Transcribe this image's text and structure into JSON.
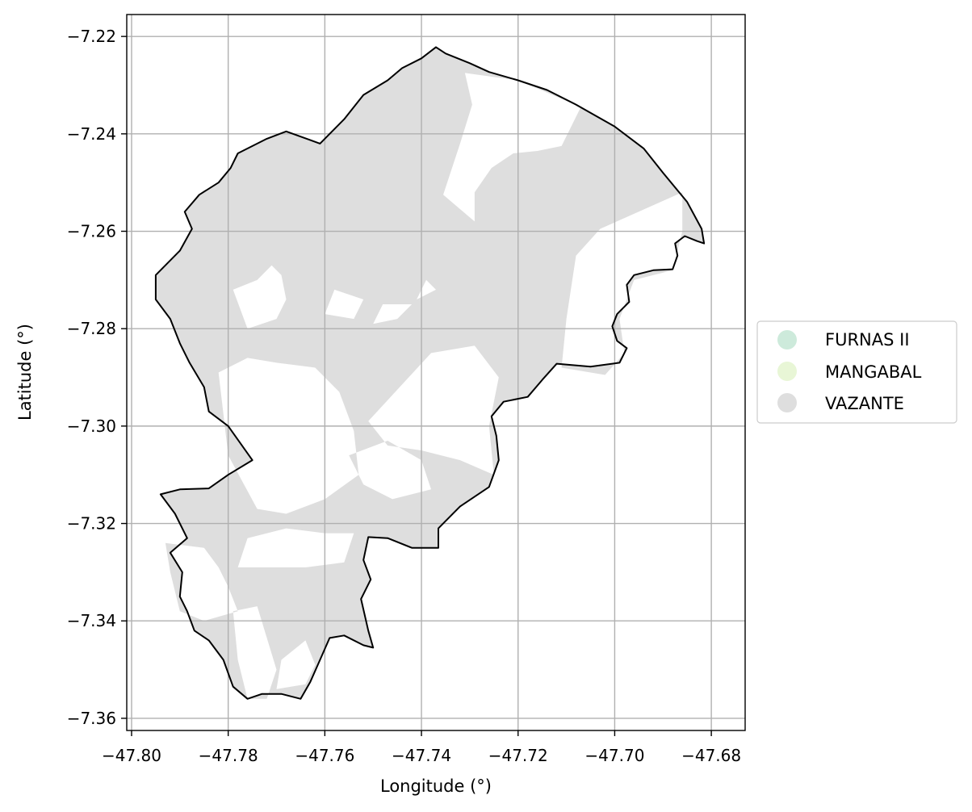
{
  "chart_data": {
    "type": "map",
    "xlabel": "Longitude (°)",
    "ylabel": "Latitude (°)",
    "xlim": [
      -47.801,
      -47.673
    ],
    "ylim": [
      -7.3625,
      -7.2155
    ],
    "grid": true,
    "x_ticks": [
      {
        "value": -47.8,
        "label": "−47.80"
      },
      {
        "value": -47.78,
        "label": "−47.78"
      },
      {
        "value": -47.76,
        "label": "−47.76"
      },
      {
        "value": -47.74,
        "label": "−47.74"
      },
      {
        "value": -47.72,
        "label": "−47.72"
      },
      {
        "value": -47.7,
        "label": "−47.70"
      },
      {
        "value": -47.68,
        "label": "−47.68"
      }
    ],
    "y_ticks": [
      {
        "value": -7.22,
        "label": "−7.22"
      },
      {
        "value": -7.24,
        "label": "−7.24"
      },
      {
        "value": -7.26,
        "label": "−7.26"
      },
      {
        "value": -7.28,
        "label": "−7.28"
      },
      {
        "value": -7.3,
        "label": "−7.30"
      },
      {
        "value": -7.32,
        "label": "−7.32"
      },
      {
        "value": -7.34,
        "label": "−7.34"
      },
      {
        "value": -7.36,
        "label": "−7.36"
      }
    ],
    "legend": {
      "placement": "center-right, outside axes",
      "entries": [
        {
          "label": "FURNAS II",
          "color": "#cdeadb"
        },
        {
          "label": "MANGABAL",
          "color": "#e8f6d6"
        },
        {
          "label": "VAZANTE",
          "color": "#dedede"
        }
      ]
    },
    "boundary": {
      "stroke": "#000000",
      "points": [
        [
          -47.737,
          -7.2222
        ],
        [
          -47.735,
          -7.2235
        ],
        [
          -47.73,
          -7.2255
        ],
        [
          -47.726,
          -7.2273
        ],
        [
          -47.72,
          -7.229
        ],
        [
          -47.714,
          -7.231
        ],
        [
          -47.708,
          -7.234
        ],
        [
          -47.7,
          -7.2385
        ],
        [
          -47.694,
          -7.243
        ],
        [
          -47.69,
          -7.248
        ],
        [
          -47.685,
          -7.254
        ],
        [
          -47.682,
          -7.2595
        ],
        [
          -47.6815,
          -7.2625
        ],
        [
          -47.683,
          -7.262
        ],
        [
          -47.6855,
          -7.261
        ],
        [
          -47.6875,
          -7.2625
        ],
        [
          -47.687,
          -7.265
        ],
        [
          -47.688,
          -7.2678
        ],
        [
          -47.692,
          -7.268
        ],
        [
          -47.696,
          -7.269
        ],
        [
          -47.6975,
          -7.271
        ],
        [
          -47.697,
          -7.2745
        ],
        [
          -47.6995,
          -7.277
        ],
        [
          -47.7005,
          -7.2795
        ],
        [
          -47.6995,
          -7.2825
        ],
        [
          -47.6975,
          -7.284
        ],
        [
          -47.699,
          -7.287
        ],
        [
          -47.705,
          -7.2878
        ],
        [
          -47.712,
          -7.2872
        ],
        [
          -47.715,
          -7.2905
        ],
        [
          -47.718,
          -7.294
        ],
        [
          -47.723,
          -7.295
        ],
        [
          -47.7255,
          -7.298
        ],
        [
          -47.7245,
          -7.302
        ],
        [
          -47.724,
          -7.307
        ],
        [
          -47.726,
          -7.3125
        ],
        [
          -47.732,
          -7.3165
        ],
        [
          -47.7365,
          -7.321
        ],
        [
          -47.7365,
          -7.325
        ],
        [
          -47.742,
          -7.325
        ],
        [
          -47.747,
          -7.323
        ],
        [
          -47.751,
          -7.3228
        ],
        [
          -47.752,
          -7.3275
        ],
        [
          -47.7505,
          -7.3315
        ],
        [
          -47.7525,
          -7.3355
        ],
        [
          -47.751,
          -7.342
        ],
        [
          -47.75,
          -7.3455
        ],
        [
          -47.752,
          -7.345
        ],
        [
          -47.756,
          -7.343
        ],
        [
          -47.759,
          -7.3435
        ],
        [
          -47.761,
          -7.348
        ],
        [
          -47.763,
          -7.3525
        ],
        [
          -47.765,
          -7.356
        ],
        [
          -47.769,
          -7.355
        ],
        [
          -47.773,
          -7.355
        ],
        [
          -47.776,
          -7.356
        ],
        [
          -47.779,
          -7.3535
        ],
        [
          -47.781,
          -7.348
        ],
        [
          -47.784,
          -7.344
        ],
        [
          -47.787,
          -7.342
        ],
        [
          -47.7885,
          -7.338
        ],
        [
          -47.79,
          -7.335
        ],
        [
          -47.7895,
          -7.33
        ],
        [
          -47.792,
          -7.326
        ],
        [
          -47.7885,
          -7.323
        ],
        [
          -47.791,
          -7.318
        ],
        [
          -47.794,
          -7.314
        ],
        [
          -47.79,
          -7.313
        ],
        [
          -47.784,
          -7.3128
        ],
        [
          -47.78,
          -7.31
        ],
        [
          -47.775,
          -7.307
        ],
        [
          -47.78,
          -7.3
        ],
        [
          -47.784,
          -7.297
        ],
        [
          -47.785,
          -7.292
        ],
        [
          -47.788,
          -7.287
        ],
        [
          -47.79,
          -7.283
        ],
        [
          -47.792,
          -7.278
        ],
        [
          -47.795,
          -7.274
        ],
        [
          -47.795,
          -7.269
        ],
        [
          -47.79,
          -7.264
        ],
        [
          -47.7875,
          -7.2595
        ],
        [
          -47.789,
          -7.256
        ],
        [
          -47.786,
          -7.2525
        ],
        [
          -47.782,
          -7.25
        ],
        [
          -47.7795,
          -7.247
        ],
        [
          -47.778,
          -7.244
        ],
        [
          -47.772,
          -7.241
        ],
        [
          -47.768,
          -7.2395
        ],
        [
          -47.761,
          -7.242
        ],
        [
          -47.756,
          -7.237
        ],
        [
          -47.752,
          -7.232
        ],
        [
          -47.747,
          -7.229
        ],
        [
          -47.744,
          -7.2265
        ],
        [
          -47.74,
          -7.2245
        ],
        [
          -47.737,
          -7.2222
        ]
      ]
    },
    "holes": [
      [
        [
          -47.731,
          -7.2275
        ],
        [
          -47.72,
          -7.229
        ],
        [
          -47.707,
          -7.2345
        ],
        [
          -47.711,
          -7.2425
        ],
        [
          -47.716,
          -7.2435
        ],
        [
          -47.721,
          -7.244
        ],
        [
          -47.7255,
          -7.247
        ],
        [
          -47.729,
          -7.252
        ],
        [
          -47.729,
          -7.258
        ],
        [
          -47.7355,
          -7.2525
        ],
        [
          -47.732,
          -7.242
        ],
        [
          -47.7295,
          -7.234
        ]
      ],
      [
        [
          -47.686,
          -7.252
        ],
        [
          -47.703,
          -7.2595
        ],
        [
          -47.708,
          -7.265
        ],
        [
          -47.71,
          -7.278
        ],
        [
          -47.711,
          -7.288
        ],
        [
          -47.702,
          -7.2895
        ],
        [
          -47.698,
          -7.285
        ],
        [
          -47.699,
          -7.278
        ],
        [
          -47.696,
          -7.27
        ],
        [
          -47.688,
          -7.268
        ],
        [
          -47.686,
          -7.26
        ]
      ],
      [
        [
          -47.738,
          -7.285
        ],
        [
          -47.729,
          -7.2835
        ],
        [
          -47.724,
          -7.29
        ],
        [
          -47.726,
          -7.3
        ],
        [
          -47.725,
          -7.31
        ],
        [
          -47.732,
          -7.307
        ],
        [
          -47.74,
          -7.305
        ],
        [
          -47.747,
          -7.304
        ],
        [
          -47.751,
          -7.299
        ]
      ],
      [
        [
          -47.782,
          -7.289
        ],
        [
          -47.776,
          -7.286
        ],
        [
          -47.77,
          -7.287
        ],
        [
          -47.762,
          -7.288
        ],
        [
          -47.757,
          -7.293
        ],
        [
          -47.754,
          -7.301
        ],
        [
          -47.753,
          -7.31
        ],
        [
          -47.76,
          -7.315
        ],
        [
          -47.768,
          -7.318
        ],
        [
          -47.774,
          -7.317
        ],
        [
          -47.78,
          -7.306
        ]
      ],
      [
        [
          -47.747,
          -7.303
        ],
        [
          -47.74,
          -7.307
        ],
        [
          -47.738,
          -7.313
        ],
        [
          -47.746,
          -7.315
        ],
        [
          -47.752,
          -7.312
        ],
        [
          -47.755,
          -7.306
        ]
      ],
      [
        [
          -47.768,
          -7.321
        ],
        [
          -47.76,
          -7.322
        ],
        [
          -47.754,
          -7.322
        ],
        [
          -47.756,
          -7.328
        ],
        [
          -47.764,
          -7.329
        ],
        [
          -47.778,
          -7.329
        ],
        [
          -47.776,
          -7.323
        ]
      ],
      [
        [
          -47.793,
          -7.324
        ],
        [
          -47.785,
          -7.325
        ],
        [
          -47.782,
          -7.329
        ],
        [
          -47.78,
          -7.333
        ],
        [
          -47.778,
          -7.338
        ],
        [
          -47.785,
          -7.34
        ],
        [
          -47.79,
          -7.338
        ],
        [
          -47.792,
          -7.33
        ]
      ],
      [
        [
          -47.779,
          -7.338
        ],
        [
          -47.774,
          -7.337
        ],
        [
          -47.77,
          -7.35
        ],
        [
          -47.772,
          -7.356
        ],
        [
          -47.776,
          -7.356
        ],
        [
          -47.778,
          -7.348
        ]
      ],
      [
        [
          -47.764,
          -7.344
        ],
        [
          -47.769,
          -7.348
        ],
        [
          -47.77,
          -7.354
        ],
        [
          -47.764,
          -7.353
        ],
        [
          -47.762,
          -7.349
        ]
      ],
      [
        [
          -47.771,
          -7.267
        ],
        [
          -47.774,
          -7.27
        ],
        [
          -47.779,
          -7.272
        ],
        [
          -47.776,
          -7.28
        ],
        [
          -47.77,
          -7.278
        ],
        [
          -47.768,
          -7.274
        ],
        [
          -47.769,
          -7.269
        ]
      ],
      [
        [
          -47.758,
          -7.272
        ],
        [
          -47.752,
          -7.274
        ],
        [
          -47.754,
          -7.278
        ],
        [
          -47.76,
          -7.277
        ]
      ],
      [
        [
          -47.748,
          -7.275
        ],
        [
          -47.742,
          -7.275
        ],
        [
          -47.745,
          -7.278
        ],
        [
          -47.75,
          -7.279
        ]
      ],
      [
        [
          -47.737,
          -7.272
        ],
        [
          -47.741,
          -7.274
        ],
        [
          -47.739,
          -7.27
        ]
      ]
    ]
  }
}
